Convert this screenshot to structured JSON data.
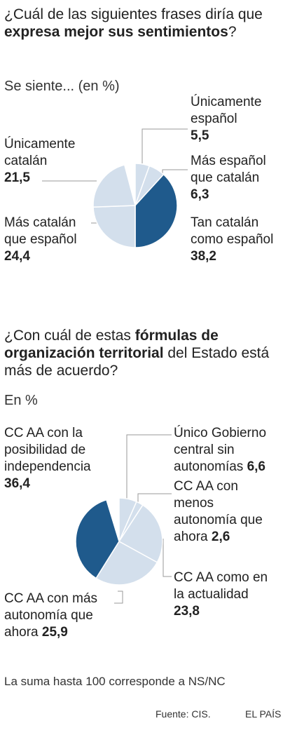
{
  "chart_data": [
    {
      "type": "pie",
      "title_parts": [
        "¿Cuál de las siguientes frases diría que ",
        "expresa mejor sus sentimientos",
        "?"
      ],
      "subtitle": "Se siente... (en %)",
      "slices": [
        {
          "label": "Únicamente español",
          "value": 5.5,
          "value_text": "5,5",
          "color": "#d3dfec"
        },
        {
          "label": "Más español que catalán",
          "value": 6.3,
          "value_text": "6,3",
          "color": "#d3dfec"
        },
        {
          "label": "Tan catalán como español",
          "value": 38.2,
          "value_text": "38,2",
          "color": "#1f5a8c"
        },
        {
          "label": "Más catalán que español",
          "value": 24.4,
          "value_text": "24,4",
          "color": "#d3dfec"
        },
        {
          "label": "Únicamente catalán",
          "value": 21.5,
          "value_text": "21,5",
          "color": "#d3dfec"
        }
      ]
    },
    {
      "type": "pie",
      "title_parts": [
        "¿Con cuál de estas ",
        "fórmulas de organización territorial",
        " del Estado está más de acuerdo?"
      ],
      "subtitle": "En %",
      "slices": [
        {
          "label": "Único Gobierno central sin autonomías",
          "value": 6.6,
          "value_text": "6,6",
          "color": "#d3dfec"
        },
        {
          "label": "CC AA con menos autonomía que ahora",
          "value": 2.6,
          "value_text": "2,6",
          "color": "#d3dfec"
        },
        {
          "label": "CC AA como en la actualidad",
          "value": 23.8,
          "value_text": "23,8",
          "color": "#d3dfec"
        },
        {
          "label": "CC AA con más autonomía que ahora",
          "value": 25.9,
          "value_text": "25,9",
          "color": "#d3dfec"
        },
        {
          "label": "CC AA con la posibilidad de independencia",
          "value": 36.4,
          "value_text": "36,4",
          "color": "#1f5a8c"
        }
      ]
    }
  ],
  "footnote": "La suma hasta 100 corresponde a NS/NC",
  "source": "Fuente: CIS.",
  "brand": "EL PAÍS",
  "colors": {
    "accent": "#1f5a8c",
    "light": "#d3dfec",
    "leader": "#9a9a9a"
  }
}
